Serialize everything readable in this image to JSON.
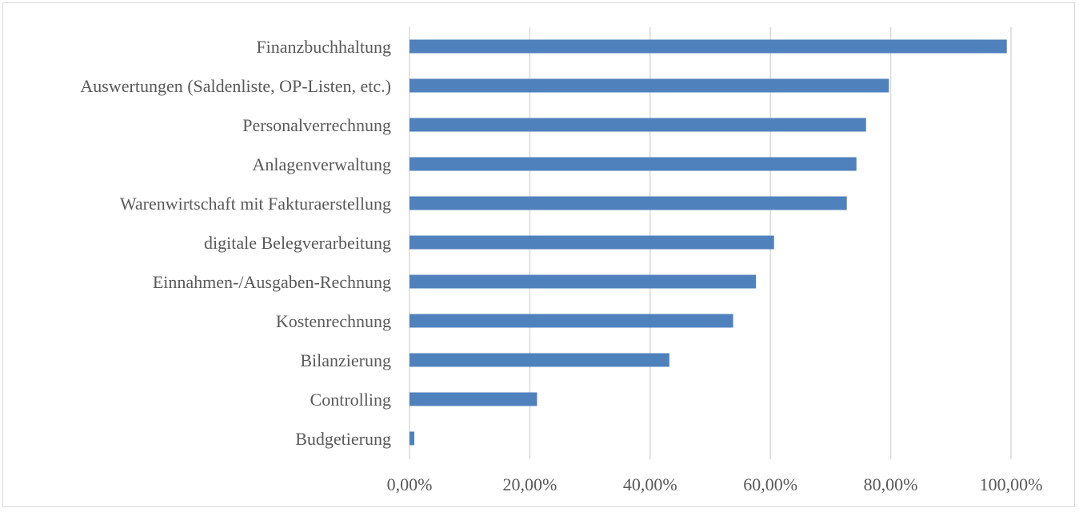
{
  "chart_data": {
    "type": "bar",
    "orientation": "horizontal",
    "categories": [
      "Finanzbuchhaltung",
      "Auswertungen (Saldenliste, OP-Listen, etc.)",
      "Personalverrechnung",
      "Anlagenverwaltung",
      "Warenwirtschaft mit Fakturaerstellung",
      "digitale Belegverarbeitung",
      "Einnahmen-/Ausgaben-Rechnung",
      "Kostenrechnung",
      "Bilanzierung",
      "Controlling",
      "Budgetierung"
    ],
    "values": [
      99.3,
      79.7,
      75.9,
      74.3,
      72.7,
      60.6,
      57.6,
      53.8,
      43.2,
      21.2,
      0.8
    ],
    "xlim": [
      0,
      100
    ],
    "x_ticks": [
      "0,00%",
      "20,00%",
      "40,00%",
      "60,00%",
      "80,00%",
      "100,00%"
    ],
    "grid": true,
    "legend": "none",
    "title": "",
    "xlabel": "",
    "ylabel": "",
    "bar_color": "#4f81bd",
    "grid_color": "#d9d9d9",
    "text_color": "#595959"
  }
}
